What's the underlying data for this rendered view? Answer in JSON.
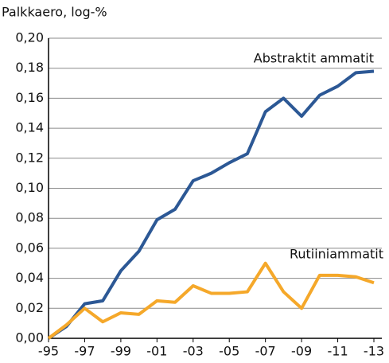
{
  "chart_data": {
    "type": "line",
    "title": "Palkkaero, log-%",
    "categories": [
      "-95",
      null,
      "-97",
      null,
      "-99",
      null,
      "-01",
      null,
      "-03",
      null,
      "-05",
      null,
      "-07",
      null,
      "-09",
      null,
      "-11",
      null,
      "-13"
    ],
    "series": [
      {
        "name": "Abstraktit ammatit",
        "color": "#2c5895",
        "values": [
          0.0,
          0.008,
          0.023,
          0.025,
          0.045,
          0.058,
          0.079,
          0.086,
          0.105,
          0.11,
          0.117,
          0.123,
          0.151,
          0.16,
          0.148,
          0.162,
          0.168,
          0.177,
          0.178
        ]
      },
      {
        "name": "Rutiiniammatit",
        "color": "#f5a82a",
        "values": [
          0.0,
          0.009,
          0.02,
          0.011,
          0.017,
          0.016,
          0.025,
          0.024,
          0.035,
          0.03,
          0.03,
          0.031,
          0.05,
          0.031,
          0.02,
          0.042,
          0.042,
          0.041,
          0.037
        ]
      }
    ],
    "ylim": [
      0,
      0.2
    ],
    "yticks": [
      {
        "value": 0,
        "label": "0,00"
      },
      {
        "value": 0.02,
        "label": "0,02"
      },
      {
        "value": 0.04,
        "label": "0,04"
      },
      {
        "value": 0.06,
        "label": "0,06"
      },
      {
        "value": 0.08,
        "label": "0,08"
      },
      {
        "value": 0.1,
        "label": "0,10"
      },
      {
        "value": 0.12,
        "label": "0,12"
      },
      {
        "value": 0.14,
        "label": "0,14"
      },
      {
        "value": 0.16,
        "label": "0,16"
      },
      {
        "value": 0.18,
        "label": "0,18"
      },
      {
        "value": 0.2,
        "label": "0,20"
      }
    ],
    "grid": true
  }
}
